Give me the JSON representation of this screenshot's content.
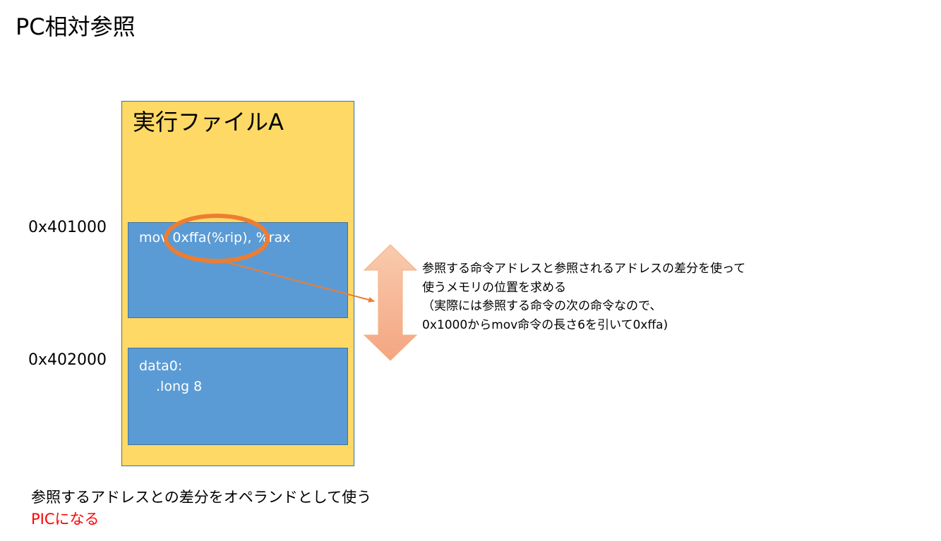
{
  "title": "PC相対参照",
  "executable": {
    "label": "実行ファイルA",
    "code_address": "0x401000",
    "data_address": "0x402000",
    "code_text": "mov 0xffa(%rip), %rax",
    "data_label": "data0:",
    "data_value": ".long 8"
  },
  "note_lines": [
    "参照する命令アドレスと参照されるアドレスの差分を使って",
    "使うメモリの位置を求める",
    "（実際には参照する命令の次の命令なので、",
    "0x1000からmov命令の長さ6を引いて0xffa)"
  ],
  "footer_lines": [
    "参照するアドレスとの差分をオペランドとして使う",
    "PICになる"
  ],
  "colors": {
    "file_fill": "#FFD966",
    "block_fill": "#5B9BD5",
    "block_border": "#41719C",
    "highlight_orange": "#ED7D31",
    "double_arrow_top": "#F8CBAD",
    "double_arrow_bottom": "#F4A582",
    "emphasis_red": "#FF0000"
  }
}
